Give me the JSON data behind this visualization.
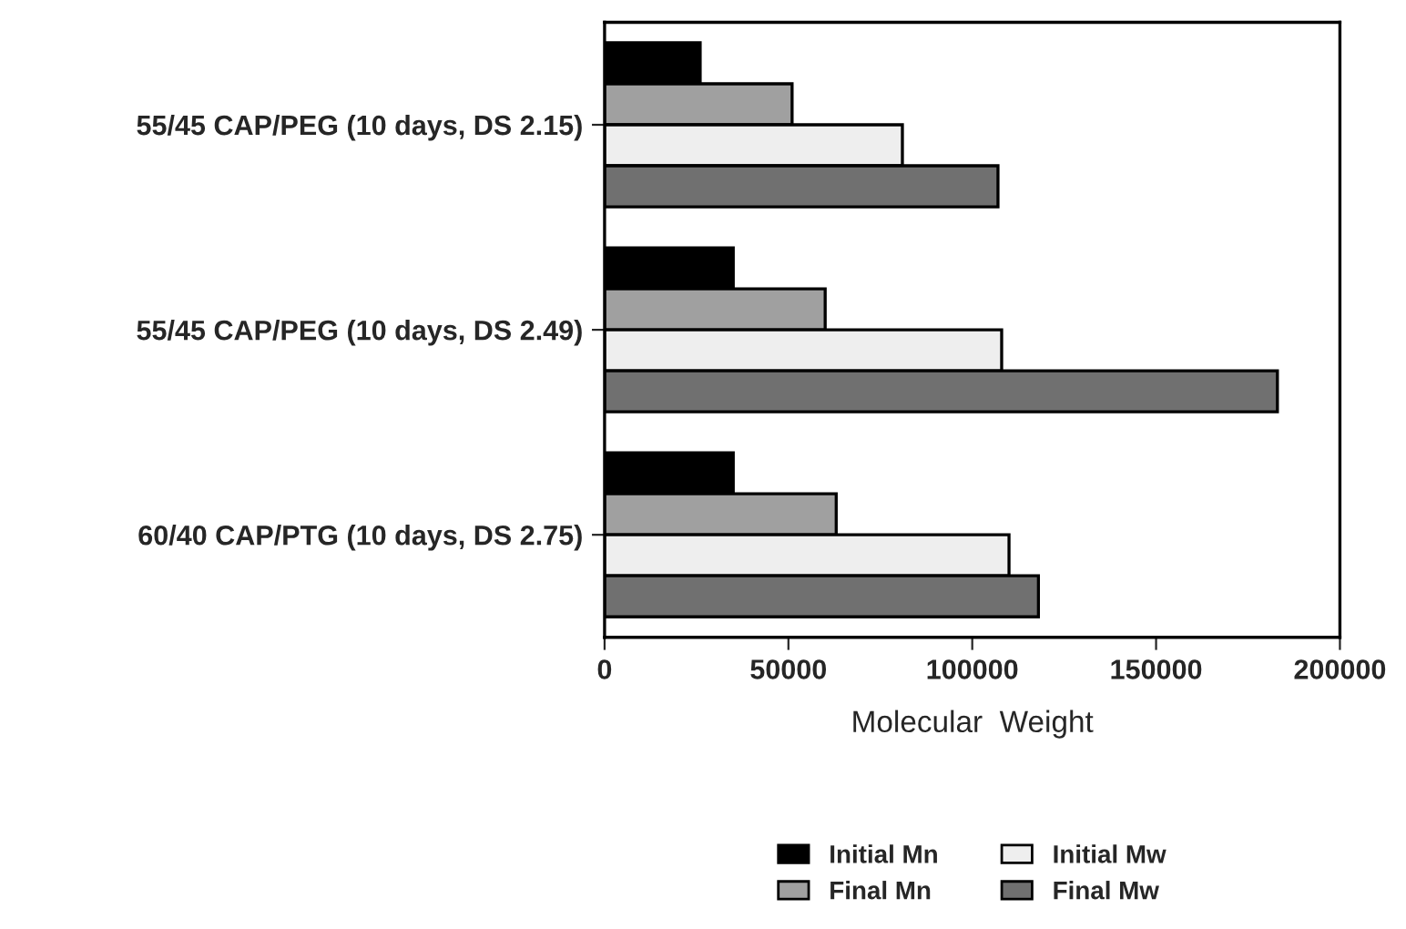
{
  "chart_data": {
    "type": "bar",
    "orientation": "horizontal",
    "xlabel": "Molecular  Weight",
    "categories": [
      "55/45 CAP/PEG (10 days, DS 2.15)",
      "55/45 CAP/PEG (10 days, DS 2.49)",
      "60/40 CAP/PTG (10 days, DS 2.75)"
    ],
    "series": [
      {
        "name": "Initial Mn",
        "color": "#000000",
        "values": [
          26000,
          35000,
          35000
        ]
      },
      {
        "name": "Final Mn",
        "color": "#a0a0a0",
        "values": [
          51000,
          60000,
          63000
        ]
      },
      {
        "name": "Initial Mw",
        "color": "#eeeeee",
        "values": [
          81000,
          108000,
          110000
        ]
      },
      {
        "name": "Final Mw",
        "color": "#707070",
        "values": [
          107000,
          183000,
          118000
        ]
      }
    ],
    "xlim": [
      0,
      200000
    ],
    "xticks": [
      0,
      50000,
      100000,
      150000,
      200000
    ],
    "grid": false,
    "legend": "bottom"
  }
}
